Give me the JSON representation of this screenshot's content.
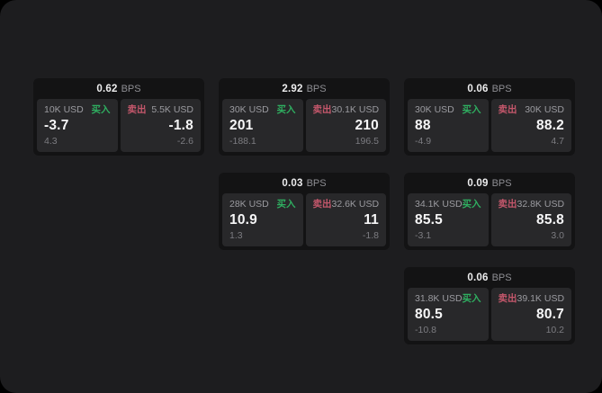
{
  "labels": {
    "bps_unit": "BPS",
    "buy": "买入",
    "sell": "卖出"
  },
  "colors": {
    "page_bg": "#1d1d1f",
    "card_bg": "#131314",
    "panel_bg": "#28282a",
    "buy_green": "#2fae60",
    "sell_red": "#c4576b"
  },
  "cards": [
    {
      "bps": "0.62",
      "buy": {
        "amount": "10K USD",
        "value": "-3.7",
        "sub": "4.3"
      },
      "sell": {
        "amount": "5.5K USD",
        "value": "-1.8",
        "sub": "-2.6"
      }
    },
    {
      "bps": "2.92",
      "buy": {
        "amount": "30K USD",
        "value": "201",
        "sub": "-188.1"
      },
      "sell": {
        "amount": "30.1K USD",
        "value": "210",
        "sub": "196.5"
      }
    },
    {
      "bps": "0.06",
      "buy": {
        "amount": "30K USD",
        "value": "88",
        "sub": "-4.9"
      },
      "sell": {
        "amount": "30K USD",
        "value": "88.2",
        "sub": "4.7"
      }
    },
    {
      "bps": "0.03",
      "buy": {
        "amount": "28K USD",
        "value": "10.9",
        "sub": "1.3"
      },
      "sell": {
        "amount": "32.6K USD",
        "value": "11",
        "sub": "-1.8"
      }
    },
    {
      "bps": "0.09",
      "buy": {
        "amount": "34.1K USD",
        "value": "85.5",
        "sub": "-3.1"
      },
      "sell": {
        "amount": "32.8K USD",
        "value": "85.8",
        "sub": "3.0"
      }
    },
    {
      "bps": "0.06",
      "buy": {
        "amount": "31.8K USD",
        "value": "80.5",
        "sub": "-10.8"
      },
      "sell": {
        "amount": "39.1K USD",
        "value": "80.7",
        "sub": "10.2"
      }
    }
  ]
}
